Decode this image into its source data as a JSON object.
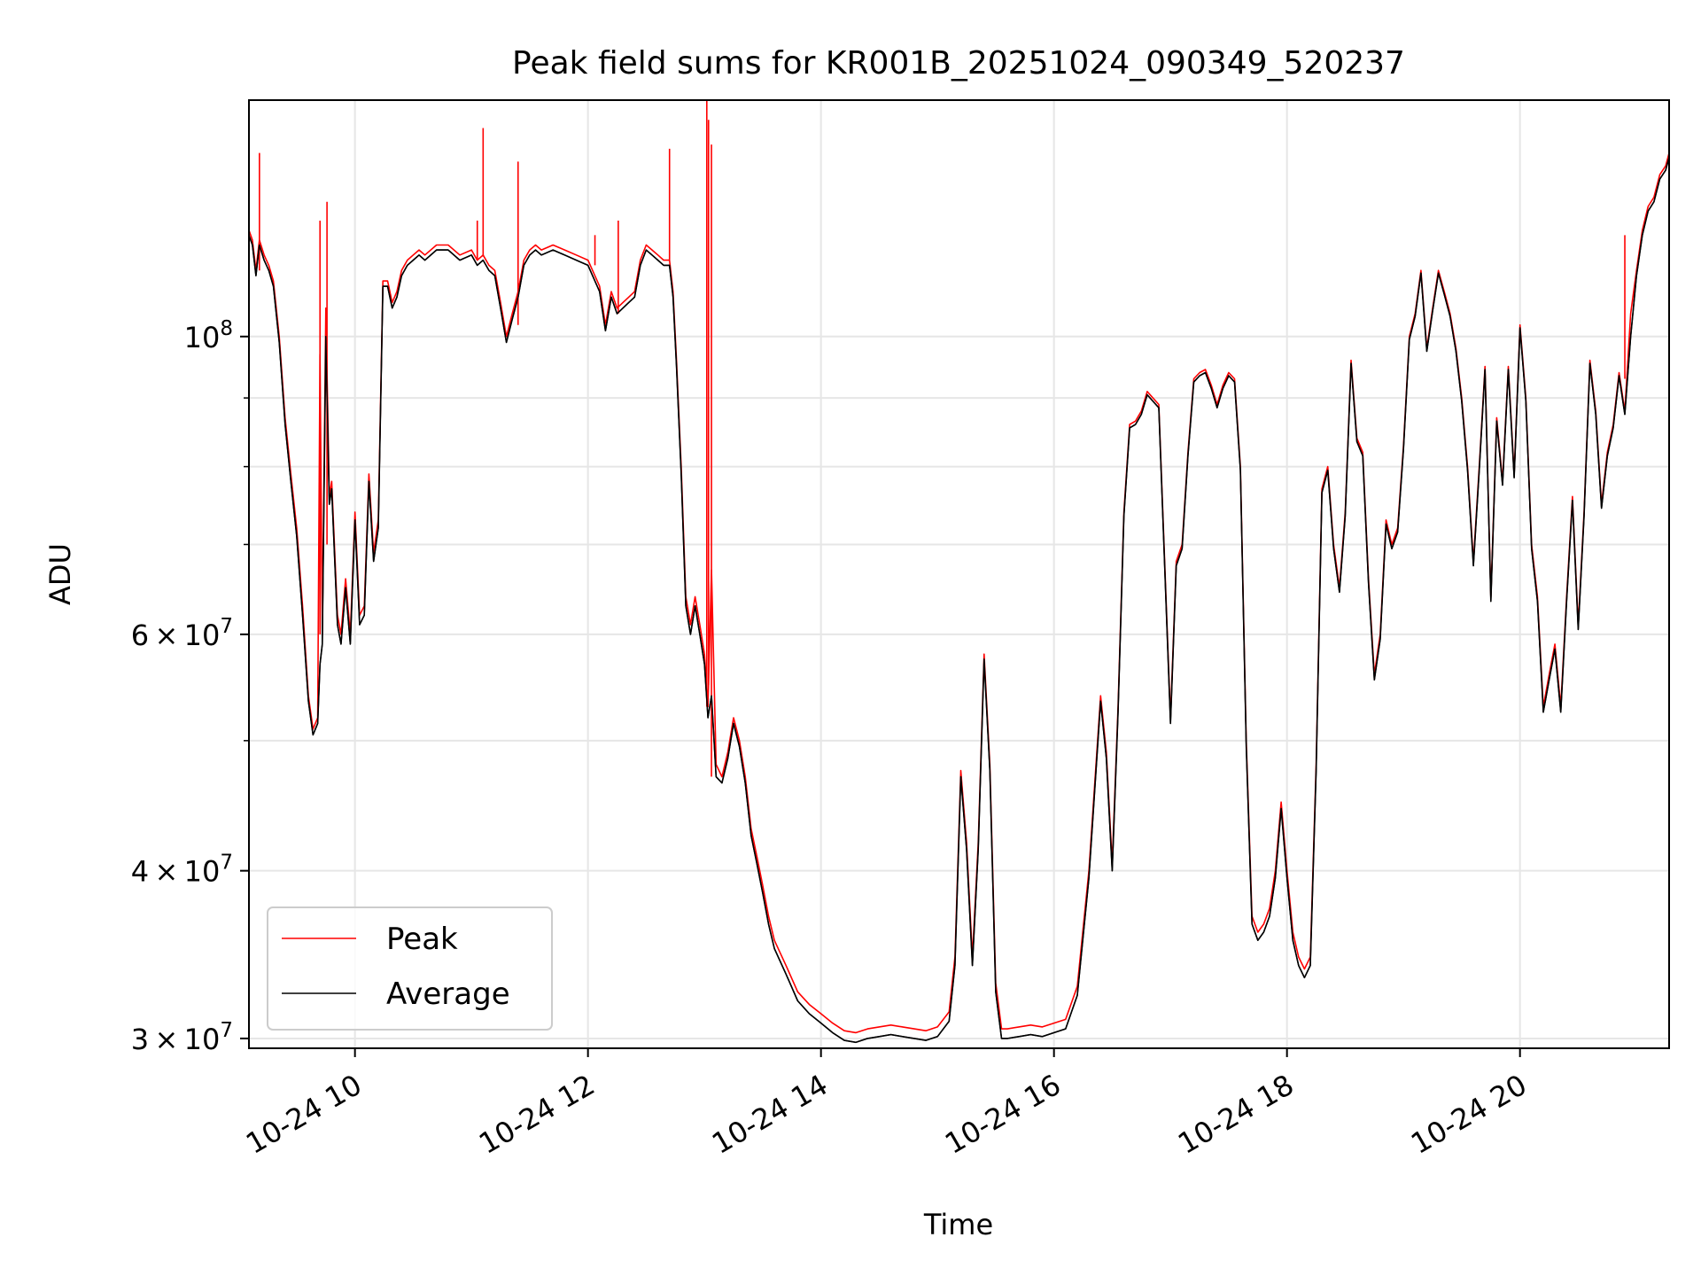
{
  "chart_data": {
    "type": "line",
    "title": "Peak field sums for KR001B_20251024_090349_520237",
    "xlabel": "Time",
    "ylabel": "ADU",
    "yscale": "log",
    "xlim": [
      9.09,
      21.28
    ],
    "ylim": [
      29500000,
      150000000
    ],
    "grid": true,
    "legend_position": "bottom-left",
    "x_ticks": [
      {
        "value": 10,
        "label": "10-24 10"
      },
      {
        "value": 12,
        "label": "10-24 12"
      },
      {
        "value": 14,
        "label": "10-24 14"
      },
      {
        "value": 16,
        "label": "10-24 16"
      },
      {
        "value": 18,
        "label": "10-24 18"
      },
      {
        "value": 20,
        "label": "10-24 20"
      }
    ],
    "y_ticks": [
      {
        "value": 30000000,
        "mantissa": "3",
        "base": "10",
        "exp": "7"
      },
      {
        "value": 40000000,
        "mantissa": "4",
        "base": "10",
        "exp": "7"
      },
      {
        "value": 60000000,
        "mantissa": "6",
        "base": "10",
        "exp": "7"
      },
      {
        "value": 100000000,
        "mantissa": "",
        "base": "10",
        "exp": "8"
      }
    ],
    "y_minor_ticks": [
      50000000,
      70000000,
      80000000,
      90000000
    ],
    "series": [
      {
        "name": "Peak",
        "color": "#ff0000",
        "x": [
          9.09,
          9.12,
          9.15,
          9.18,
          9.22,
          9.26,
          9.3,
          9.35,
          9.4,
          9.45,
          9.5,
          9.55,
          9.6,
          9.64,
          9.68,
          9.7,
          9.72,
          9.75,
          9.78,
          9.8,
          9.85,
          9.88,
          9.92,
          9.96,
          10.0,
          10.04,
          10.08,
          10.12,
          10.16,
          10.2,
          10.24,
          10.28,
          10.32,
          10.36,
          10.4,
          10.45,
          10.5,
          10.55,
          10.6,
          10.7,
          10.8,
          10.9,
          11.0,
          11.05,
          11.1,
          11.15,
          11.2,
          11.25,
          11.3,
          11.35,
          11.4,
          11.45,
          11.5,
          11.55,
          11.6,
          11.7,
          11.8,
          11.9,
          12.0,
          12.1,
          12.15,
          12.2,
          12.25,
          12.3,
          12.35,
          12.4,
          12.45,
          12.5,
          12.55,
          12.6,
          12.65,
          12.7,
          12.73,
          12.76,
          12.8,
          12.84,
          12.88,
          12.92,
          12.96,
          13.0,
          13.03,
          13.06,
          13.1,
          13.15,
          13.2,
          13.25,
          13.3,
          13.35,
          13.4,
          13.45,
          13.5,
          13.55,
          13.6,
          13.7,
          13.8,
          13.9,
          14.0,
          14.1,
          14.2,
          14.3,
          14.4,
          14.5,
          14.6,
          14.7,
          14.8,
          14.9,
          15.0,
          15.1,
          15.15,
          15.2,
          15.25,
          15.3,
          15.35,
          15.4,
          15.45,
          15.5,
          15.55,
          15.6,
          15.7,
          15.8,
          15.9,
          16.0,
          16.1,
          16.2,
          16.3,
          16.4,
          16.45,
          16.5,
          16.55,
          16.6,
          16.65,
          16.7,
          16.75,
          16.8,
          16.9,
          17.0,
          17.05,
          17.1,
          17.15,
          17.2,
          17.25,
          17.3,
          17.35,
          17.4,
          17.45,
          17.5,
          17.55,
          17.6,
          17.65,
          17.7,
          17.75,
          17.8,
          17.85,
          17.9,
          17.95,
          18.0,
          18.05,
          18.1,
          18.15,
          18.2,
          18.25,
          18.3,
          18.35,
          18.4,
          18.45,
          18.5,
          18.55,
          18.6,
          18.65,
          18.7,
          18.75,
          18.8,
          18.85,
          18.9,
          18.95,
          19.0,
          19.05,
          19.1,
          19.15,
          19.2,
          19.25,
          19.3,
          19.35,
          19.4,
          19.45,
          19.5,
          19.55,
          19.6,
          19.65,
          19.7,
          19.75,
          19.8,
          19.85,
          19.9,
          19.95,
          20.0,
          20.05,
          20.1,
          20.15,
          20.2,
          20.25,
          20.3,
          20.35,
          20.4,
          20.45,
          20.5,
          20.55,
          20.6,
          20.65,
          20.7,
          20.75,
          20.8,
          20.85,
          20.9,
          20.95,
          21.0,
          21.05,
          21.1,
          21.15,
          21.2,
          21.25,
          21.28
        ],
        "values": [
          120000000,
          118000000,
          112000000,
          118000000,
          115000000,
          113000000,
          110000000,
          100000000,
          87000000,
          79000000,
          72000000,
          63000000,
          54000000,
          51000000,
          52000000,
          97000000,
          60000000,
          105000000,
          76000000,
          78000000,
          62000000,
          60000000,
          66000000,
          60000000,
          74000000,
          62000000,
          63000000,
          79000000,
          69000000,
          73000000,
          110000000,
          110000000,
          106000000,
          108000000,
          112000000,
          114000000,
          115000000,
          116000000,
          115000000,
          117000000,
          117000000,
          115000000,
          116000000,
          114000000,
          115000000,
          113000000,
          112000000,
          106000000,
          100000000,
          104000000,
          108000000,
          114000000,
          116000000,
          117000000,
          116000000,
          117000000,
          116000000,
          115000000,
          114000000,
          109000000,
          102000000,
          108000000,
          105000000,
          106000000,
          107000000,
          108000000,
          114000000,
          117000000,
          116000000,
          115000000,
          114000000,
          114000000,
          108000000,
          96000000,
          80000000,
          64000000,
          61000000,
          64000000,
          61000000,
          58000000,
          53000000,
          67000000,
          48000000,
          47000000,
          49000000,
          52000000,
          50000000,
          47000000,
          43000000,
          41000000,
          39000000,
          37000000,
          35500000,
          34000000,
          32500000,
          31800000,
          31300000,
          30800000,
          30400000,
          30300000,
          30500000,
          30600000,
          30700000,
          30600000,
          30500000,
          30400000,
          30600000,
          31400000,
          34500000,
          47500000,
          42000000,
          34500000,
          42000000,
          58000000,
          48000000,
          33000000,
          30500000,
          30500000,
          30600000,
          30700000,
          30600000,
          30800000,
          31000000,
          32800000,
          40000000,
          54000000,
          49000000,
          40500000,
          53000000,
          74000000,
          86000000,
          86500000,
          88000000,
          91000000,
          89000000,
          52000000,
          68000000,
          70000000,
          82000000,
          93000000,
          94000000,
          94500000,
          92000000,
          89000000,
          92000000,
          94000000,
          93000000,
          80000000,
          50000000,
          37000000,
          36000000,
          36500000,
          37500000,
          40000000,
          45000000,
          40000000,
          36000000,
          34500000,
          33800000,
          34500000,
          48000000,
          77000000,
          80000000,
          70000000,
          65000000,
          74000000,
          96000000,
          84000000,
          82000000,
          66000000,
          56000000,
          60000000,
          73000000,
          70000000,
          72000000,
          83000000,
          100000000,
          104000000,
          112000000,
          98000000,
          105000000,
          112000000,
          108000000,
          104000000,
          98000000,
          90000000,
          80000000,
          68000000,
          80000000,
          95000000,
          64000000,
          87000000,
          78000000,
          95000000,
          79000000,
          102000000,
          90000000,
          70000000,
          64000000,
          53000000,
          56000000,
          59000000,
          53000000,
          64000000,
          76000000,
          61000000,
          74000000,
          96000000,
          88000000,
          75000000,
          82000000,
          86000000,
          94000000,
          88000000,
          104000000,
          112000000,
          120000000,
          125000000,
          127000000,
          132000000,
          134000000,
          137000000
        ]
      },
      {
        "name": "Average",
        "color": "#000000",
        "x": [
          9.09,
          9.12,
          9.15,
          9.18,
          9.22,
          9.26,
          9.3,
          9.35,
          9.4,
          9.45,
          9.5,
          9.55,
          9.6,
          9.64,
          9.68,
          9.7,
          9.72,
          9.75,
          9.78,
          9.8,
          9.85,
          9.88,
          9.92,
          9.96,
          10.0,
          10.04,
          10.08,
          10.12,
          10.16,
          10.2,
          10.24,
          10.28,
          10.32,
          10.36,
          10.4,
          10.45,
          10.5,
          10.55,
          10.6,
          10.7,
          10.8,
          10.9,
          11.0,
          11.05,
          11.1,
          11.15,
          11.2,
          11.25,
          11.3,
          11.35,
          11.4,
          11.45,
          11.5,
          11.55,
          11.6,
          11.7,
          11.8,
          11.9,
          12.0,
          12.1,
          12.15,
          12.2,
          12.25,
          12.3,
          12.35,
          12.4,
          12.45,
          12.5,
          12.55,
          12.6,
          12.65,
          12.7,
          12.73,
          12.76,
          12.8,
          12.84,
          12.88,
          12.92,
          12.96,
          13.0,
          13.03,
          13.06,
          13.1,
          13.15,
          13.2,
          13.25,
          13.3,
          13.35,
          13.4,
          13.45,
          13.5,
          13.55,
          13.6,
          13.7,
          13.8,
          13.9,
          14.0,
          14.1,
          14.2,
          14.3,
          14.4,
          14.5,
          14.6,
          14.7,
          14.8,
          14.9,
          15.0,
          15.1,
          15.15,
          15.2,
          15.25,
          15.3,
          15.35,
          15.4,
          15.45,
          15.5,
          15.55,
          15.6,
          15.7,
          15.8,
          15.9,
          16.0,
          16.1,
          16.2,
          16.3,
          16.4,
          16.45,
          16.5,
          16.55,
          16.6,
          16.65,
          16.7,
          16.75,
          16.8,
          16.9,
          17.0,
          17.05,
          17.1,
          17.15,
          17.2,
          17.25,
          17.3,
          17.35,
          17.4,
          17.45,
          17.5,
          17.55,
          17.6,
          17.65,
          17.7,
          17.75,
          17.8,
          17.85,
          17.9,
          17.95,
          18.0,
          18.05,
          18.1,
          18.15,
          18.2,
          18.25,
          18.3,
          18.35,
          18.4,
          18.45,
          18.5,
          18.55,
          18.6,
          18.65,
          18.7,
          18.75,
          18.8,
          18.85,
          18.9,
          18.95,
          19.0,
          19.05,
          19.1,
          19.15,
          19.2,
          19.25,
          19.3,
          19.35,
          19.4,
          19.45,
          19.5,
          19.55,
          19.6,
          19.65,
          19.7,
          19.75,
          19.8,
          19.85,
          19.9,
          19.95,
          20.0,
          20.05,
          20.1,
          20.15,
          20.2,
          20.25,
          20.3,
          20.35,
          20.4,
          20.45,
          20.5,
          20.55,
          20.6,
          20.65,
          20.7,
          20.75,
          20.8,
          20.85,
          20.9,
          20.95,
          21.0,
          21.05,
          21.1,
          21.15,
          21.2,
          21.25,
          21.28
        ],
        "values": [
          119000000,
          117000000,
          111000000,
          117000000,
          114000000,
          112000000,
          109000000,
          99000000,
          86000000,
          78000000,
          71000000,
          62000000,
          53500000,
          50500000,
          51500000,
          57000000,
          59000000,
          100000000,
          75000000,
          77000000,
          61000000,
          59000000,
          65000000,
          59000000,
          73000000,
          61000000,
          62000000,
          78000000,
          68000000,
          72000000,
          109000000,
          109000000,
          105000000,
          107000000,
          111000000,
          113000000,
          114000000,
          115000000,
          114000000,
          116000000,
          116000000,
          114000000,
          115000000,
          113000000,
          114000000,
          112000000,
          111000000,
          105000000,
          99000000,
          103000000,
          107000000,
          113000000,
          115000000,
          116000000,
          115000000,
          116000000,
          115000000,
          114000000,
          113000000,
          108000000,
          101000000,
          107000000,
          104000000,
          105000000,
          106000000,
          107000000,
          113000000,
          116000000,
          115000000,
          114000000,
          113000000,
          113000000,
          107000000,
          95000000,
          79000000,
          63000000,
          60000000,
          63000000,
          60000000,
          57000000,
          52000000,
          54000000,
          47000000,
          46500000,
          48500000,
          51500000,
          49500000,
          46500000,
          42500000,
          40500000,
          38500000,
          36500000,
          35000000,
          33500000,
          32000000,
          31300000,
          30800000,
          30300000,
          29900000,
          29800000,
          30000000,
          30100000,
          30200000,
          30100000,
          30000000,
          29900000,
          30100000,
          30900000,
          34000000,
          47000000,
          41500000,
          34000000,
          41500000,
          57500000,
          47500000,
          32500000,
          30000000,
          30000000,
          30100000,
          30200000,
          30100000,
          30300000,
          30500000,
          32300000,
          39500000,
          53500000,
          48500000,
          40000000,
          52500000,
          73500000,
          85500000,
          86000000,
          87500000,
          90500000,
          88500000,
          51500000,
          67500000,
          69500000,
          81500000,
          92500000,
          93500000,
          94000000,
          91500000,
          88500000,
          91500000,
          93500000,
          92500000,
          79500000,
          49500000,
          36500000,
          35500000,
          36000000,
          37000000,
          39500000,
          44500000,
          39500000,
          35500000,
          34000000,
          33300000,
          34000000,
          47500000,
          76500000,
          79500000,
          69500000,
          64500000,
          73500000,
          95500000,
          83500000,
          81500000,
          65500000,
          55500000,
          59500000,
          72500000,
          69500000,
          71500000,
          82500000,
          99500000,
          103500000,
          111500000,
          97500000,
          104500000,
          111500000,
          107500000,
          103500000,
          97500000,
          89500000,
          79500000,
          67500000,
          79500000,
          94500000,
          63500000,
          86500000,
          77500000,
          94500000,
          78500000,
          101500000,
          89500000,
          69500000,
          63500000,
          52500000,
          55500000,
          58500000,
          52500000,
          63500000,
          75500000,
          60500000,
          73500000,
          95500000,
          87500000,
          74500000,
          81500000,
          85500000,
          93500000,
          87500000,
          100000000,
          111000000,
          119000000,
          124000000,
          126000000,
          131000000,
          133000000,
          136000000
        ]
      }
    ],
    "spikes": [
      {
        "series": "Peak",
        "x": 9.18,
        "values": [
          112000000,
          137000000
        ]
      },
      {
        "series": "Peak",
        "x": 9.7,
        "values": [
          60000000,
          122000000
        ]
      },
      {
        "series": "Peak",
        "x": 9.76,
        "values": [
          70000000,
          126000000
        ]
      },
      {
        "series": "Peak",
        "x": 11.05,
        "values": [
          114000000,
          122000000
        ]
      },
      {
        "series": "Peak",
        "x": 11.1,
        "values": [
          115000000,
          143000000
        ]
      },
      {
        "series": "Peak",
        "x": 11.4,
        "values": [
          102000000,
          135000000
        ]
      },
      {
        "series": "Peak",
        "x": 12.06,
        "values": [
          113000000,
          119000000
        ]
      },
      {
        "series": "Peak",
        "x": 12.26,
        "values": [
          104000000,
          122000000
        ]
      },
      {
        "series": "Peak",
        "x": 12.7,
        "values": [
          114000000,
          138000000
        ]
      },
      {
        "series": "Peak",
        "x": 13.02,
        "values": [
          53000000,
          150000000
        ]
      },
      {
        "series": "Peak",
        "x": 13.035,
        "values": [
          55000000,
          145000000
        ]
      },
      {
        "series": "Peak",
        "x": 13.06,
        "values": [
          47000000,
          139000000
        ]
      },
      {
        "series": "Peak",
        "x": 20.9,
        "values": [
          93000000,
          119000000
        ]
      }
    ]
  }
}
